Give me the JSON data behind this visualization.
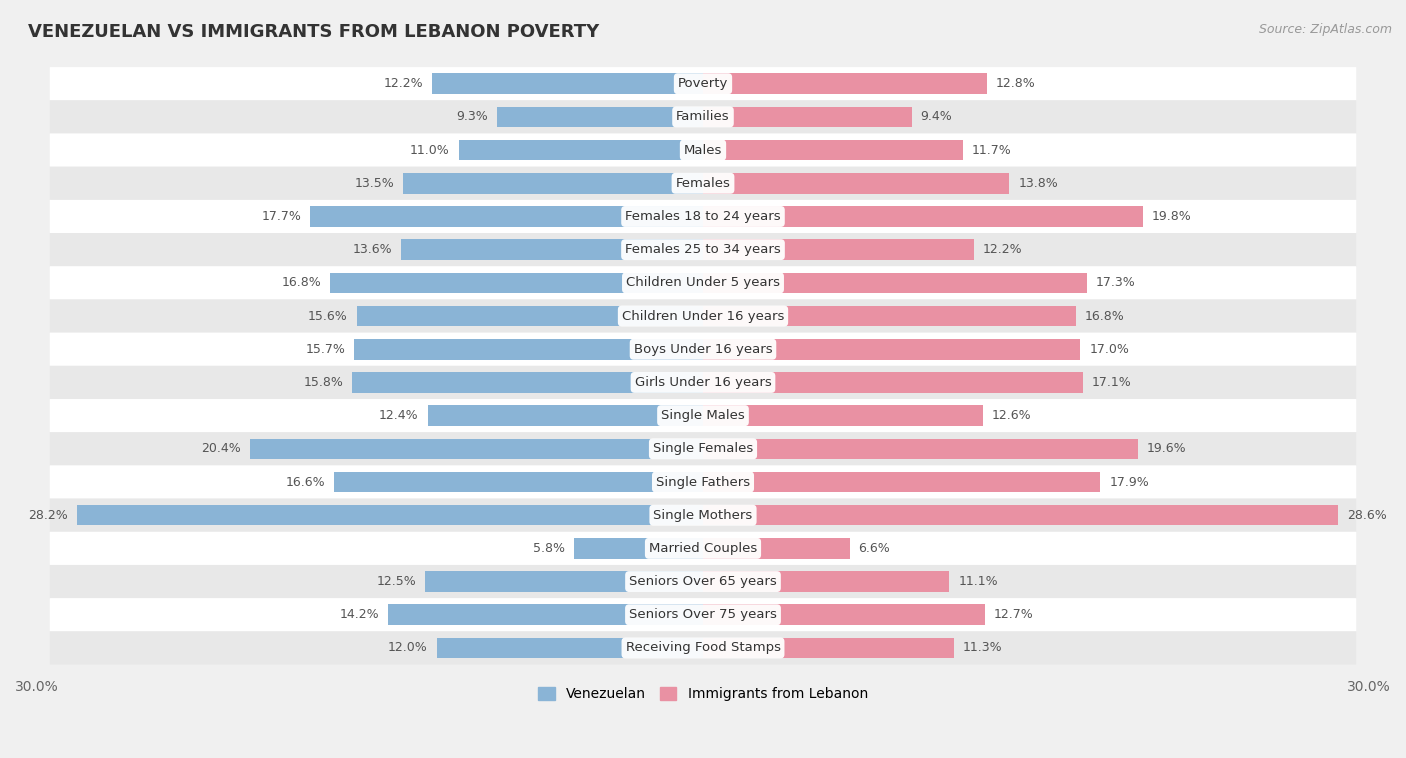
{
  "title": "VENEZUELAN VS IMMIGRANTS FROM LEBANON POVERTY",
  "source": "Source: ZipAtlas.com",
  "categories": [
    "Poverty",
    "Families",
    "Males",
    "Females",
    "Females 18 to 24 years",
    "Females 25 to 34 years",
    "Children Under 5 years",
    "Children Under 16 years",
    "Boys Under 16 years",
    "Girls Under 16 years",
    "Single Males",
    "Single Females",
    "Single Fathers",
    "Single Mothers",
    "Married Couples",
    "Seniors Over 65 years",
    "Seniors Over 75 years",
    "Receiving Food Stamps"
  ],
  "venezuelan": [
    12.2,
    9.3,
    11.0,
    13.5,
    17.7,
    13.6,
    16.8,
    15.6,
    15.7,
    15.8,
    12.4,
    20.4,
    16.6,
    28.2,
    5.8,
    12.5,
    14.2,
    12.0
  ],
  "lebanon": [
    12.8,
    9.4,
    11.7,
    13.8,
    19.8,
    12.2,
    17.3,
    16.8,
    17.0,
    17.1,
    12.6,
    19.6,
    17.9,
    28.6,
    6.6,
    11.1,
    12.7,
    11.3
  ],
  "venezuelan_color": "#8ab4d6",
  "lebanon_color": "#e991a3",
  "bar_height": 0.62,
  "xlim": 30.0,
  "background_color": "#f0f0f0",
  "row_bg_white": "#ffffff",
  "row_bg_gray": "#e8e8e8",
  "label_fontsize": 9.5,
  "value_fontsize": 9.0,
  "title_fontsize": 13,
  "legend_fontsize": 10,
  "value_color_dark": "#555555",
  "value_color_white": "#ffffff"
}
